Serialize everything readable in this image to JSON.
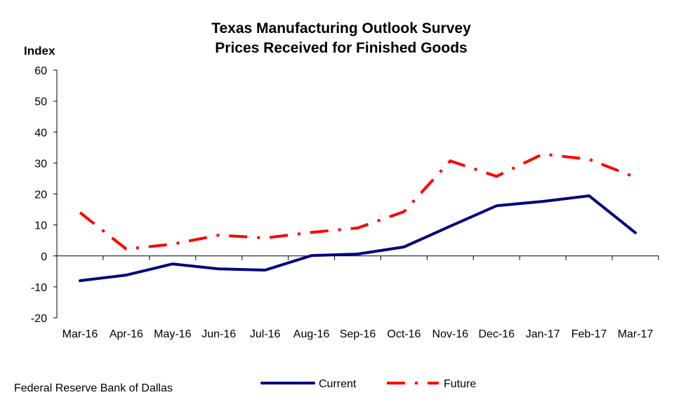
{
  "chart_data": {
    "type": "line",
    "title": "Texas Manufacturing Outlook  Survey",
    "subtitle": "Prices Received for Finished Goods",
    "ylabel": "Index",
    "xlabel": "",
    "ylim": [
      -20,
      60
    ],
    "yticks": [
      -20,
      -10,
      0,
      10,
      20,
      30,
      40,
      50,
      60
    ],
    "categories": [
      "Mar-16",
      "Apr-16",
      "May-16",
      "Jun-16",
      "Jul-16",
      "Aug-16",
      "Sep-16",
      "Oct-16",
      "Nov-16",
      "Dec-16",
      "Jan-17",
      "Feb-17",
      "Mar-17"
    ],
    "series": [
      {
        "name": "Current",
        "color": "#000080",
        "style": "solid",
        "values": [
          -8.0,
          -6.2,
          -2.6,
          -4.2,
          -4.6,
          0.1,
          0.6,
          2.9,
          9.6,
          16.2,
          17.6,
          19.4,
          7.5
        ]
      },
      {
        "name": "Future",
        "color": "#ff0000",
        "style": "dash-dot",
        "values": [
          14.0,
          2.2,
          3.8,
          6.7,
          5.8,
          7.6,
          9.0,
          14.3,
          30.7,
          25.7,
          32.9,
          31.2,
          25.4
        ]
      }
    ],
    "legend_position": "bottom-center",
    "grid": false
  },
  "source": "Federal Reserve Bank of Dallas"
}
